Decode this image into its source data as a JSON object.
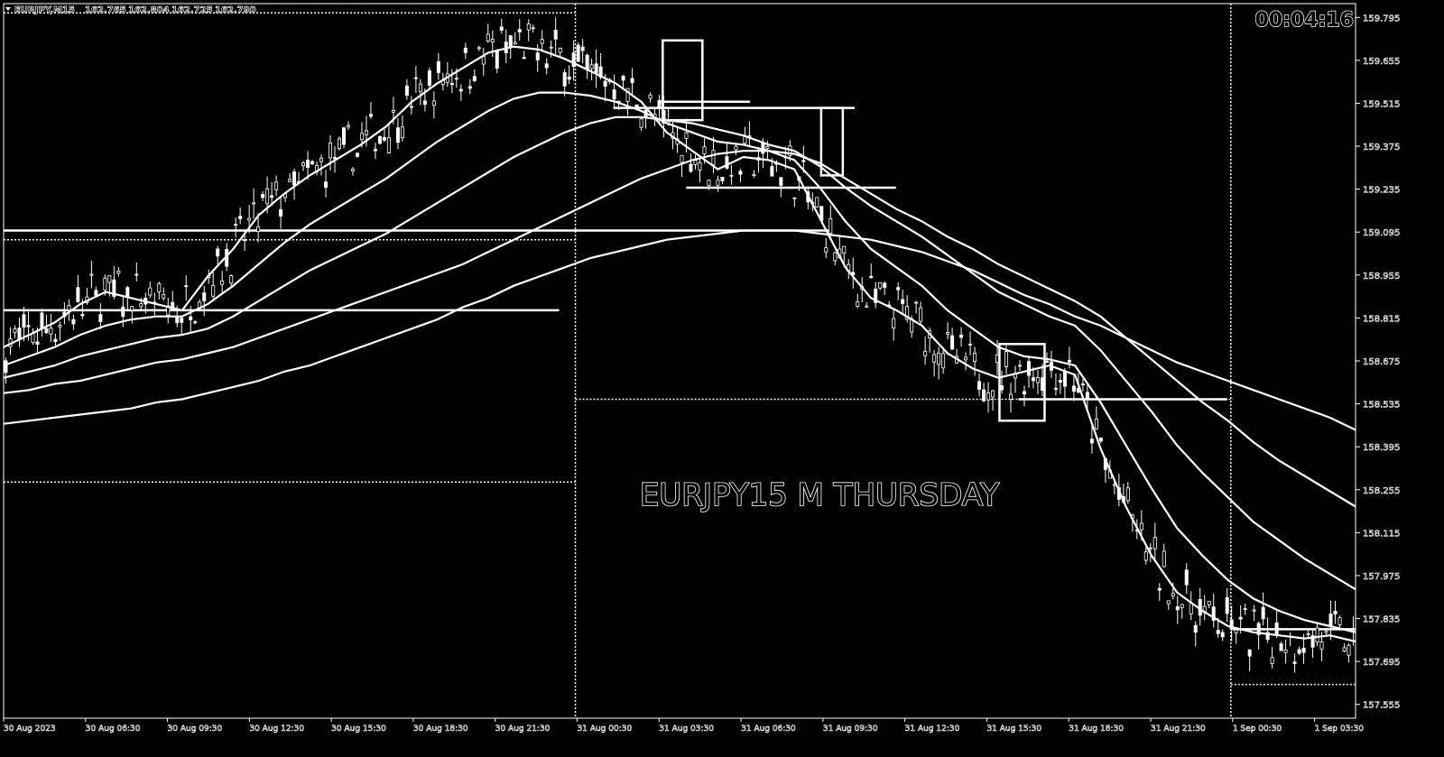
{
  "chart_data": {
    "type": "candlestick",
    "header": {
      "symbol": "EURJPY,M15",
      "ohlc": [
        "162.765",
        "162.804",
        "162.725",
        "162.790"
      ]
    },
    "timer": "00:04:16",
    "annotation": "EURJPY15 M THURSDAY",
    "y_ticks": [
      "159.795",
      "159.655",
      "159.515",
      "159.375",
      "159.235",
      "159.095",
      "158.955",
      "158.815",
      "158.675",
      "158.535",
      "158.395",
      "158.255",
      "158.115",
      "157.975",
      "157.835",
      "157.695",
      "157.555"
    ],
    "x_ticks": [
      "30 Aug 2023",
      "30 Aug 06:30",
      "30 Aug 09:30",
      "30 Aug 12:30",
      "30 Aug 15:30",
      "30 Aug 18:30",
      "30 Aug 21:30",
      "31 Aug 00:30",
      "31 Aug 03:30",
      "31 Aug 06:30",
      "31 Aug 09:30",
      "31 Aug 12:30",
      "31 Aug 15:30",
      "31 Aug 18:30",
      "31 Aug 21:30",
      "1 Sep 00:30",
      "1 Sep 03:30"
    ],
    "series": [
      {
        "values": [
          158.72,
          158.76,
          158.8,
          158.86,
          158.9,
          158.88,
          158.86,
          158.84,
          158.95,
          159.04,
          159.15,
          159.22,
          159.28,
          159.33,
          159.38,
          159.44,
          159.52,
          159.58,
          159.63,
          159.68,
          159.7,
          159.69,
          159.66,
          159.62,
          159.58,
          159.52,
          159.42,
          159.36,
          159.3,
          159.34,
          159.33,
          159.3,
          159.14,
          158.98,
          158.88,
          158.84,
          158.79,
          158.7,
          158.65,
          158.62,
          158.64,
          158.66,
          158.63,
          158.39,
          158.2,
          158.04,
          157.92,
          157.86,
          157.81,
          157.79,
          157.78,
          157.77,
          157.78,
          157.76
        ]
      },
      {
        "values": [
          158.66,
          158.69,
          158.72,
          158.76,
          158.79,
          158.81,
          158.82,
          158.82,
          158.86,
          158.92,
          158.99,
          159.06,
          159.12,
          159.17,
          159.22,
          159.27,
          159.33,
          159.39,
          159.44,
          159.49,
          159.53,
          159.55,
          159.55,
          159.54,
          159.52,
          159.49,
          159.45,
          159.42,
          159.39,
          159.38,
          159.36,
          159.33,
          159.24,
          159.13,
          159.04,
          158.98,
          158.92,
          158.84,
          158.78,
          158.72,
          158.69,
          158.68,
          158.66,
          158.54,
          158.4,
          158.26,
          158.13,
          158.04,
          157.96,
          157.9,
          157.86,
          157.83,
          157.81,
          157.79
        ]
      },
      {
        "values": [
          158.62,
          158.64,
          158.66,
          158.69,
          158.71,
          158.73,
          158.75,
          158.76,
          158.78,
          158.82,
          158.87,
          158.92,
          158.97,
          159.01,
          159.05,
          159.09,
          159.14,
          159.19,
          159.24,
          159.29,
          159.34,
          159.38,
          159.42,
          159.45,
          159.47,
          159.47,
          159.46,
          159.45,
          159.43,
          159.41,
          159.38,
          159.36,
          159.31,
          159.24,
          159.18,
          159.13,
          159.08,
          159.02,
          158.96,
          158.9,
          158.86,
          158.82,
          158.79,
          158.71,
          158.61,
          158.51,
          158.4,
          158.31,
          158.23,
          158.15,
          158.09,
          158.03,
          157.98,
          157.93
        ]
      },
      {
        "values": [
          158.57,
          158.58,
          158.6,
          158.61,
          158.63,
          158.65,
          158.67,
          158.68,
          158.7,
          158.72,
          158.75,
          158.78,
          158.81,
          158.84,
          158.87,
          158.9,
          158.93,
          158.96,
          158.99,
          159.03,
          159.07,
          159.11,
          159.15,
          159.19,
          159.23,
          159.27,
          159.3,
          159.33,
          159.35,
          159.36,
          159.36,
          159.35,
          159.32,
          159.27,
          159.22,
          159.17,
          159.13,
          159.08,
          159.04,
          158.99,
          158.95,
          158.91,
          158.87,
          158.82,
          158.75,
          158.68,
          158.61,
          158.54,
          158.48,
          158.41,
          158.35,
          158.3,
          158.25,
          158.2
        ]
      },
      {
        "values": [
          158.47,
          158.48,
          158.49,
          158.5,
          158.51,
          158.52,
          158.54,
          158.55,
          158.57,
          158.59,
          158.61,
          158.64,
          158.66,
          158.69,
          158.72,
          158.75,
          158.78,
          158.81,
          158.85,
          158.88,
          158.92,
          158.95,
          158.98,
          159.01,
          159.03,
          159.05,
          159.07,
          159.08,
          159.09,
          159.1,
          159.1,
          159.1,
          159.09,
          159.08,
          159.07,
          159.05,
          159.03,
          159.0,
          158.97,
          158.93,
          158.89,
          158.86,
          158.82,
          158.79,
          158.75,
          158.71,
          158.67,
          158.64,
          158.61,
          158.58,
          158.55,
          158.52,
          158.49,
          158.45
        ]
      }
    ],
    "levels": [
      {
        "price": 159.1
      },
      {
        "price": 158.84
      },
      {
        "price": 159.52
      },
      {
        "price": 159.5
      },
      {
        "price": 159.24
      },
      {
        "price": 158.55
      },
      {
        "price": 157.8
      }
    ],
    "dotted_levels": [
      {
        "price": 159.81
      },
      {
        "price": 159.07
      },
      {
        "price": 158.55
      },
      {
        "price": 158.28
      },
      {
        "price": 157.62
      }
    ],
    "sessions": [
      "31 Aug 00:30",
      "1 Sep 00:30"
    ],
    "ylim": [
      157.51,
      159.84
    ]
  }
}
